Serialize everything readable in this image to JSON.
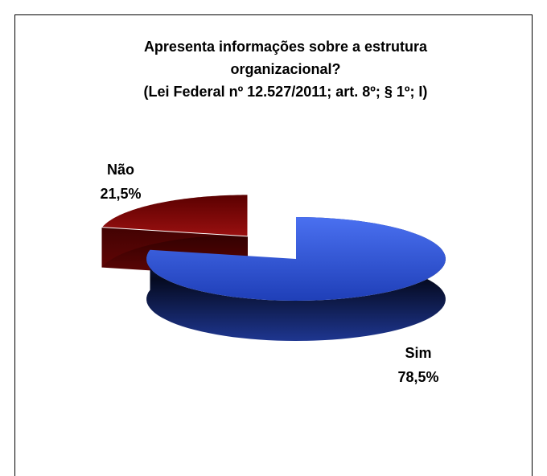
{
  "chart_data": {
    "type": "pie",
    "title": "Apresenta informações sobre a estrutura organizacional?",
    "subtitle": "(Lei Federal nº 12.527/2011; art. 8º; § 1º; I)",
    "categories": [
      "Sim",
      "Não"
    ],
    "values": [
      78.5,
      21.5
    ],
    "value_labels": [
      "78,5%",
      "21,5%"
    ],
    "colors": [
      "#3f63e6",
      "#8a0a0a"
    ]
  }
}
